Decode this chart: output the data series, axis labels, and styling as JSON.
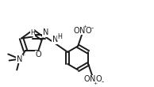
{
  "bg": "#ffffff",
  "lc": "#1a1a1a",
  "lw": 1.4,
  "fs": 7.0,
  "fig_w": 1.94,
  "fig_h": 1.1,
  "dpi": 100,
  "xlim": [
    0,
    10
  ],
  "ylim": [
    0,
    5.5
  ]
}
